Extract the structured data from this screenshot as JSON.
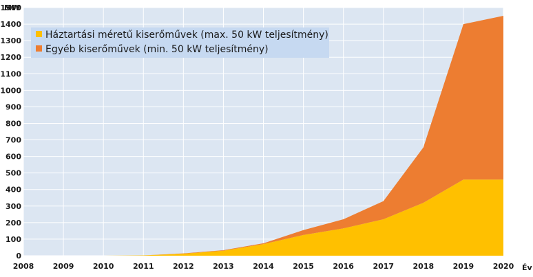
{
  "chart_data": {
    "type": "area",
    "stacked": true,
    "y_unit": "MW",
    "x_unit": "Év",
    "x": [
      2008,
      2009,
      2010,
      2011,
      2012,
      2013,
      2014,
      2015,
      2016,
      2017,
      2018,
      2019,
      2020
    ],
    "x_ticks": [
      "2008",
      "2009",
      "2010",
      "2011",
      "2012",
      "2013",
      "2014",
      "2015",
      "2016",
      "2017",
      "2018",
      "2019",
      "2020"
    ],
    "y_ticks": [
      "0",
      "100",
      "200",
      "300",
      "400",
      "500",
      "600",
      "700",
      "800",
      "900",
      "1000",
      "1100",
      "1200",
      "1300",
      "1400",
      "1500"
    ],
    "ylim": [
      0,
      1500
    ],
    "grid": true,
    "legend_position": "top-left",
    "series": [
      {
        "name": "Háztartási méretű kiserőművek (max. 50 kW teljesítmény)",
        "color": "#FFC000",
        "values": [
          0,
          0,
          0,
          2,
          12,
          30,
          70,
          125,
          165,
          220,
          320,
          460,
          460
        ]
      },
      {
        "name": "Egyéb kiserőművek (min. 50 kW teljesítmény)",
        "color": "#ED7D31",
        "values": [
          0,
          0,
          0,
          0,
          2,
          3,
          5,
          30,
          55,
          110,
          335,
          940,
          990
        ]
      }
    ],
    "plot_background": "#DCE6F2",
    "legend_background": "#C6D9F1"
  }
}
